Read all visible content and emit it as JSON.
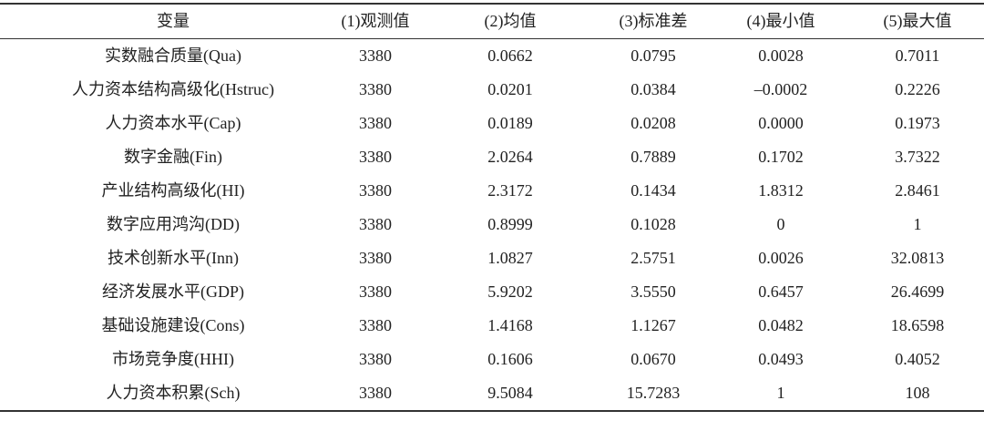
{
  "table": {
    "header": [
      "变量",
      "(1)观测值",
      "(2)均值",
      "(3)标准差",
      "(4)最小值",
      "(5)最大值"
    ],
    "rows": [
      [
        "实数融合质量(Qua)",
        "3380",
        "0.0662",
        "0.0795",
        "0.0028",
        "0.7011"
      ],
      [
        "人力资本结构高级化(Hstruc)",
        "3380",
        "0.0201",
        "0.0384",
        "–0.0002",
        "0.2226"
      ],
      [
        "人力资本水平(Cap)",
        "3380",
        "0.0189",
        "0.0208",
        "0.0000",
        "0.1973"
      ],
      [
        "数字金融(Fin)",
        "3380",
        "2.0264",
        "0.7889",
        "0.1702",
        "3.7322"
      ],
      [
        "产业结构高级化(HI)",
        "3380",
        "2.3172",
        "0.1434",
        "1.8312",
        "2.8461"
      ],
      [
        "数字应用鸿沟(DD)",
        "3380",
        "0.8999",
        "0.1028",
        "0",
        "1"
      ],
      [
        "技术创新水平(Inn)",
        "3380",
        "1.0827",
        "2.5751",
        "0.0026",
        "32.0813"
      ],
      [
        "经济发展水平(GDP)",
        "3380",
        "5.9202",
        "3.5550",
        "0.6457",
        "26.4699"
      ],
      [
        "基础设施建设(Cons)",
        "3380",
        "1.4168",
        "1.1267",
        "0.0482",
        "18.6598"
      ],
      [
        "市场竞争度(HHI)",
        "3380",
        "0.1606",
        "0.0670",
        "0.0493",
        "0.4052"
      ],
      [
        "人力资本积累(Sch)",
        "3380",
        "9.5084",
        "15.7283",
        "1",
        "108"
      ]
    ]
  }
}
